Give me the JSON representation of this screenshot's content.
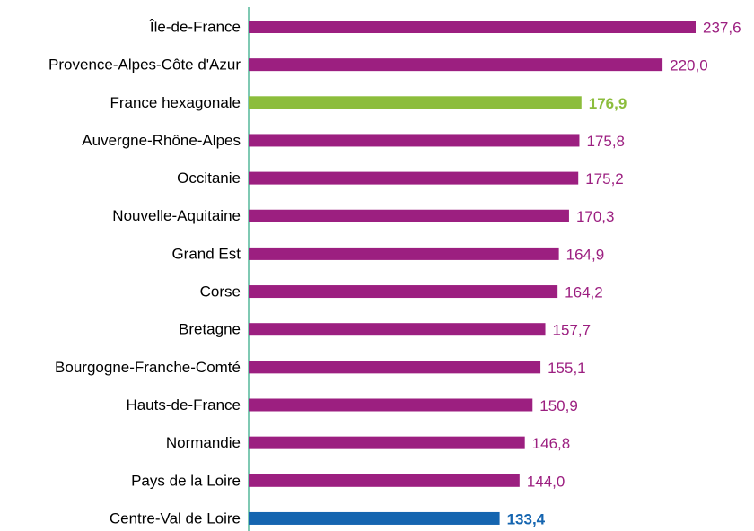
{
  "chart_data": {
    "type": "bar",
    "orientation": "horizontal",
    "categories": [
      "Île-de-France",
      "Provence-Alpes-Côte d'Azur",
      "France hexagonale",
      "Auvergne-Rhône-Alpes",
      "Occitanie",
      "Nouvelle-Aquitaine",
      "Grand Est",
      "Corse",
      "Bretagne",
      "Bourgogne-Franche-Comté",
      "Hauts-de-France",
      "Normandie",
      "Pays de la Loire",
      "Centre-Val de Loire"
    ],
    "values": [
      237.6,
      220.0,
      176.9,
      175.8,
      175.2,
      170.3,
      164.9,
      164.2,
      157.7,
      155.1,
      150.9,
      146.8,
      144.0,
      133.4
    ],
    "value_labels": [
      "237,6",
      "220,0",
      "176,9",
      "175,8",
      "175,2",
      "170,3",
      "164,9",
      "164,2",
      "157,7",
      "155,1",
      "150,9",
      "146,8",
      "144,0",
      "133,4"
    ],
    "color": "#9c1f80",
    "colors": [
      "#9c1f80",
      "#9c1f80",
      "#8cbd3c",
      "#9c1f80",
      "#9c1f80",
      "#9c1f80",
      "#9c1f80",
      "#9c1f80",
      "#9c1f80",
      "#9c1f80",
      "#9c1f80",
      "#9c1f80",
      "#9c1f80",
      "#1565b0"
    ]
  }
}
